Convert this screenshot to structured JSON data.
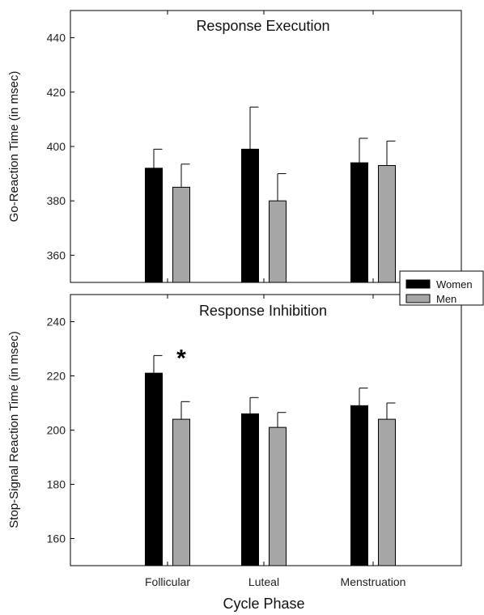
{
  "chart_data": [
    {
      "type": "bar",
      "title": "Response Execution",
      "ylabel": "Go-Reaction Time (in msec)",
      "xlabel": "",
      "ylim": [
        350,
        450
      ],
      "yticks": [
        360,
        380,
        400,
        420,
        440
      ],
      "categories": [
        "Follicular",
        "Luteal",
        "Menstruation"
      ],
      "series": [
        {
          "name": "Women",
          "color": "#000000",
          "values": [
            392,
            399,
            394
          ],
          "errors": [
            7,
            15.5,
            9
          ]
        },
        {
          "name": "Men",
          "color": "#a6a6a6",
          "values": [
            385,
            380,
            393
          ],
          "errors": [
            8.5,
            10,
            9
          ]
        }
      ],
      "annotations": []
    },
    {
      "type": "bar",
      "title": "Response Inhibition",
      "ylabel": "Stop-Signal Reaction Time (in msec)",
      "xlabel": "Cycle Phase",
      "ylim": [
        150,
        250
      ],
      "yticks": [
        160,
        180,
        200,
        220,
        240
      ],
      "categories": [
        "Follicular",
        "Luteal",
        "Menstruation"
      ],
      "series": [
        {
          "name": "Women",
          "color": "#000000",
          "values": [
            221,
            206,
            209
          ],
          "errors": [
            6.5,
            6,
            6.5
          ]
        },
        {
          "name": "Men",
          "color": "#a6a6a6",
          "values": [
            204,
            201,
            204
          ],
          "errors": [
            6.5,
            5.5,
            6
          ]
        }
      ],
      "annotations": [
        {
          "text": "*",
          "category": "Follicular",
          "y": 229
        }
      ]
    }
  ],
  "legend": {
    "placement": "right-between-panels",
    "entries": [
      {
        "label": "Women",
        "color": "#000000"
      },
      {
        "label": "Men",
        "color": "#a6a6a6"
      }
    ]
  }
}
